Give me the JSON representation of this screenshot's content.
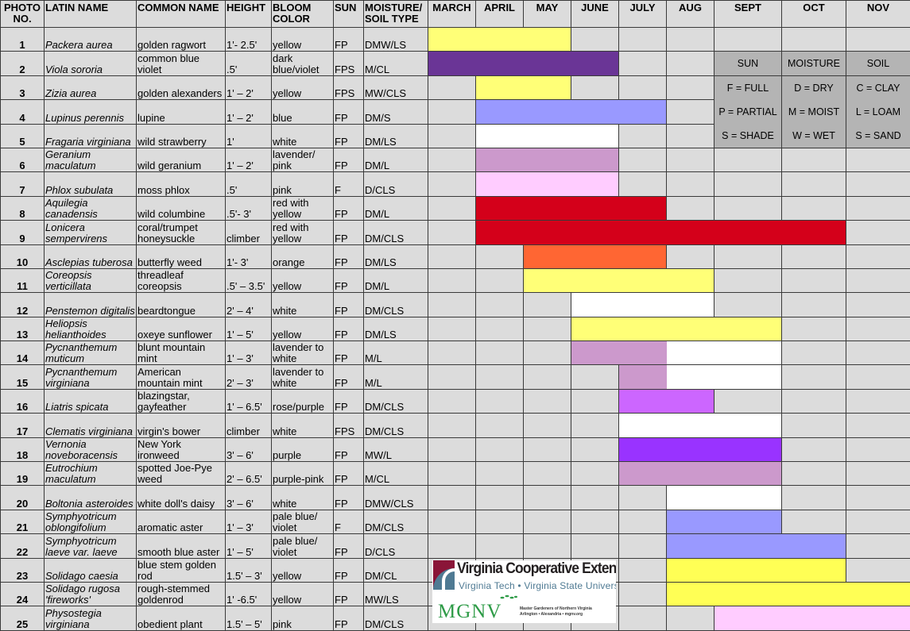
{
  "headers": {
    "photo": "PHOTO NO.",
    "latin": "LATIN NAME",
    "common": "COMMON NAME",
    "height": "HEIGHT",
    "bloom": "BLOOM COLOR",
    "sun": "SUN",
    "moisture": "MOISTURE/ SOIL TYPE"
  },
  "months": [
    "MARCH",
    "APRIL",
    "MAY",
    "JUNE",
    "JULY",
    "AUG",
    "SEPT",
    "OCT",
    "NOV"
  ],
  "plants": [
    {
      "no": "1",
      "latin": "Packera aurea",
      "common": "golden ragwort",
      "height": "1'- 2.5'",
      "bloom": "yellow",
      "sun": "FP",
      "soil": "DMW/LS",
      "start": "MARCH",
      "end": "MAY",
      "color": "#ffff77"
    },
    {
      "no": "2",
      "latin": "Viola sororia",
      "common": "common blue violet",
      "height": ".5'",
      "bloom": "dark blue/violet",
      "sun": "FPS",
      "soil": "M/CL",
      "start": "MARCH",
      "end": "JUNE",
      "color": "#6a3596"
    },
    {
      "no": "3",
      "latin": "Zizia aurea",
      "common": "golden alexanders",
      "height": "1' – 2'",
      "bloom": "yellow",
      "sun": "FPS",
      "soil": "MW/CLS",
      "start": "APRIL",
      "end": "MAY",
      "color": "#ffff77"
    },
    {
      "no": "4",
      "latin": "Lupinus perennis",
      "common": "lupine",
      "height": "1' – 2'",
      "bloom": "blue",
      "sun": "FP",
      "soil": "DM/S",
      "start": "APRIL",
      "end": "JULY",
      "color": "#9999ff"
    },
    {
      "no": "5",
      "latin": "Fragaria virginiana",
      "common": "wild strawberry",
      "height": "1'",
      "bloom": "white",
      "sun": "FP",
      "soil": "DM/LS",
      "start": "APRIL",
      "end": "JUNE",
      "color": "#ffffff"
    },
    {
      "no": "6",
      "latin": "Geranium maculatum",
      "common": "wild geranium",
      "height": "1' – 2'",
      "bloom": "lavender/ pink",
      "sun": "FP",
      "soil": "DM/L",
      "start": "APRIL",
      "end": "JUNE",
      "color": "#cc99cc"
    },
    {
      "no": "7",
      "latin": "Phlox subulata",
      "common": "moss phlox",
      "height": ".5'",
      "bloom": "pink",
      "sun": "F",
      "soil": "D/CLS",
      "start": "APRIL",
      "end": "JUNE",
      "color": "#ffccff"
    },
    {
      "no": "8",
      "latin": "Aquilegia canadensis",
      "common": "wild columbine",
      "height": ".5'- 3'",
      "bloom": "red with yellow",
      "sun": "FP",
      "soil": "DM/L",
      "start": "APRIL",
      "end": "JULY",
      "color": "#d4001a"
    },
    {
      "no": "9",
      "latin": "Lonicera sempervirens",
      "common": "coral/trumpet honeysuckle",
      "height": "climber",
      "bloom": "red with yellow",
      "sun": "FP",
      "soil": "DM/CLS",
      "start": "APRIL",
      "end": "OCT",
      "color": "#d4001a"
    },
    {
      "no": "10",
      "latin": "Asclepias tuberosa",
      "common": "butterfly weed",
      "height": "1'- 3'",
      "bloom": "orange",
      "sun": "FP",
      "soil": "DM/LS",
      "start": "MAY",
      "end": "JULY",
      "color": "#ff6633"
    },
    {
      "no": "11",
      "latin": "Coreopsis verticillata",
      "common": "threadleaf coreopsis",
      "height": ".5' – 3.5'",
      "bloom": "yellow",
      "sun": "FP",
      "soil": "DM/L",
      "start": "MAY",
      "end": "AUG",
      "color": "#ffff77"
    },
    {
      "no": "12",
      "latin": "Penstemon digitalis",
      "common": "beardtongue",
      "height": "2' – 4'",
      "bloom": "white",
      "sun": "FP",
      "soil": "DM/CLS",
      "start": "JUNE",
      "end": "AUG",
      "color": "#ffffff"
    },
    {
      "no": "13",
      "latin": "Heliopsis helianthoides",
      "common": "oxeye sunflower",
      "height": "1' – 5'",
      "bloom": "yellow",
      "sun": "FP",
      "soil": "DM/LS",
      "start": "JUNE",
      "end": "SEPT",
      "color": "#ffff77"
    },
    {
      "no": "14",
      "latin": "Pycnanthemum muticum",
      "common": "blunt mountain mint",
      "height": "1' – 3'",
      "bloom": "lavender to white",
      "sun": "FP",
      "soil": "M/L",
      "start": "JUNE",
      "end": "JULY",
      "color": "#cc99cc",
      "start2": "AUG",
      "end2": "SEPT",
      "color2": "#ffffff"
    },
    {
      "no": "15",
      "latin": "Pycnanthemum virginiana",
      "common": "American mountain mint",
      "height": "2' – 3'",
      "bloom": "lavender to white",
      "sun": "FP",
      "soil": "M/L",
      "start": "JULY",
      "end": "JULY",
      "color": "#cc99cc",
      "start2": "AUG",
      "end2": "SEPT",
      "color2": "#ffffff"
    },
    {
      "no": "16",
      "latin": "Liatris spicata",
      "common": "blazingstar, gayfeather",
      "height": "1' – 6.5'",
      "bloom": "rose/purple",
      "sun": "FP",
      "soil": "DM/CLS",
      "start": "JULY",
      "end": "AUG",
      "color": "#cc66ff"
    },
    {
      "no": "17",
      "latin": "Clematis virginiana",
      "common": "virgin's bower",
      "height": "climber",
      "bloom": "white",
      "sun": "FPS",
      "soil": "DM/CLS",
      "start": "JULY",
      "end": "SEPT",
      "color": "#ffffff"
    },
    {
      "no": "18",
      "latin": "Vernonia noveboracensis",
      "common": "New York ironweed",
      "height": "3' – 6'",
      "bloom": "purple",
      "sun": "FP",
      "soil": "MW/L",
      "start": "JULY",
      "end": "SEPT",
      "color": "#9933ff"
    },
    {
      "no": "19",
      "latin": "Eutrochium maculatum",
      "common": "spotted Joe-Pye weed",
      "height": "2' – 6.5'",
      "bloom": "purple-pink",
      "sun": "FP",
      "soil": "M/CL",
      "start": "JULY",
      "end": "SEPT",
      "color": "#cc99cc"
    },
    {
      "no": "20",
      "latin": "Boltonia asteroides",
      "common": "white doll's daisy",
      "height": "3' – 6'",
      "bloom": "white",
      "sun": "FP",
      "soil": "DMW/CLS",
      "start": "AUG",
      "end": "SEPT",
      "color": "#ffffff"
    },
    {
      "no": "21",
      "latin": "Symphyotricum oblongifolium",
      "common": "aromatic aster",
      "height": "1' – 3'",
      "bloom": "pale blue/ violet",
      "sun": "F",
      "soil": "DM/CLS",
      "start": "AUG",
      "end": "SEPT",
      "color": "#9999ff"
    },
    {
      "no": "22",
      "latin": "Symphyotricum laeve var. laeve",
      "common": "smooth blue aster",
      "height": "1' – 5'",
      "bloom": "pale blue/ violet",
      "sun": "FP",
      "soil": "D/CLS",
      "start": "AUG",
      "end": "OCT",
      "color": "#9999ff"
    },
    {
      "no": "23",
      "latin": "Solidago caesia",
      "common": "blue stem golden rod",
      "height": "1.5' – 3'",
      "bloom": "yellow",
      "sun": "FP",
      "soil": "DM/CL",
      "start": "AUG",
      "end": "OCT",
      "color": "#ffff55"
    },
    {
      "no": "24",
      "latin": "Solidago rugosa 'fireworks'",
      "common": "rough-stemmed goldenrod",
      "height": "1' -6.5'",
      "bloom": "yellow",
      "sun": "FP",
      "soil": "MW/LS",
      "start": "AUG",
      "end": "NOV",
      "color": "#ffff55"
    },
    {
      "no": "25",
      "latin": "Physostegia virginiana",
      "common": "obedient plant",
      "height": "1.5' – 5'",
      "bloom": "pink",
      "sun": "FP",
      "soil": "DM/CLS",
      "start": "SEPT",
      "end": "NOV",
      "color": "#ffccff"
    }
  ],
  "legend": {
    "headers": [
      "SUN",
      "MOISTURE",
      "SOIL"
    ],
    "rows": [
      [
        "F = FULL",
        "D = DRY",
        "C = CLAY"
      ],
      [
        "P = PARTIAL",
        "M = MOIST",
        "L = LOAM"
      ],
      [
        "S = SHADE",
        "W = WET",
        "S = SAND"
      ]
    ],
    "background": "#b4b4b4"
  },
  "logo": {
    "title": "Virginia Cooperative Extension",
    "subtitle": "Virginia Tech  •  Virginia State University",
    "mgnv": "MGNV",
    "mgnv_line1": "Master Gardeners of Northern Virginia",
    "mgnv_line2": "Arlington • Alexandria • mgnv.org"
  }
}
